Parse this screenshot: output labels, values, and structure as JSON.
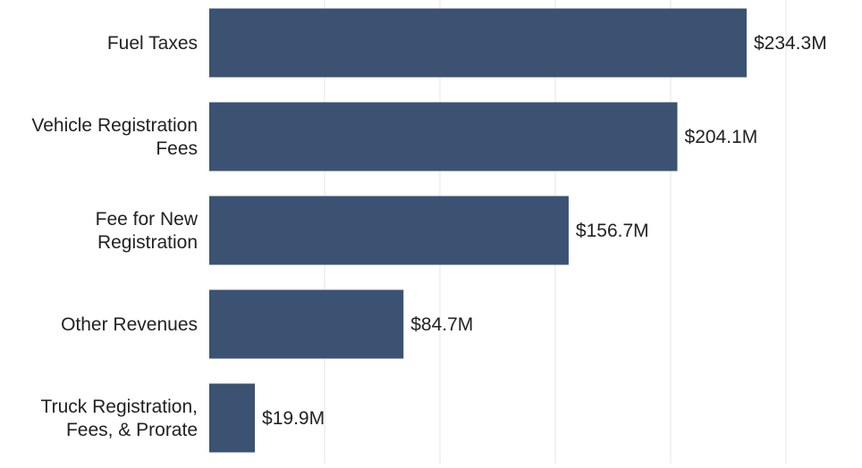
{
  "chart_data": {
    "type": "bar",
    "orientation": "horizontal",
    "title": "",
    "xlabel": "",
    "ylabel": "",
    "categories": [
      [
        "Fuel Taxes"
      ],
      [
        "Vehicle Registration",
        "Fees"
      ],
      [
        "Fee for New",
        "Registration"
      ],
      [
        "Other Revenues"
      ],
      [
        "Truck Registration,",
        "Fees, & Prorate"
      ]
    ],
    "values": [
      234.3,
      204.1,
      156.7,
      84.7,
      19.9
    ],
    "value_labels": [
      "$234.3M",
      "$204.1M",
      "$156.7M",
      "$84.7M",
      "$19.9M"
    ],
    "unit": "$M",
    "xlim": [
      0,
      250
    ],
    "grid": true,
    "legend": "none",
    "colors": {
      "bar": "#3c5273",
      "grid": "#e6e6e6",
      "text": "#222222"
    }
  }
}
